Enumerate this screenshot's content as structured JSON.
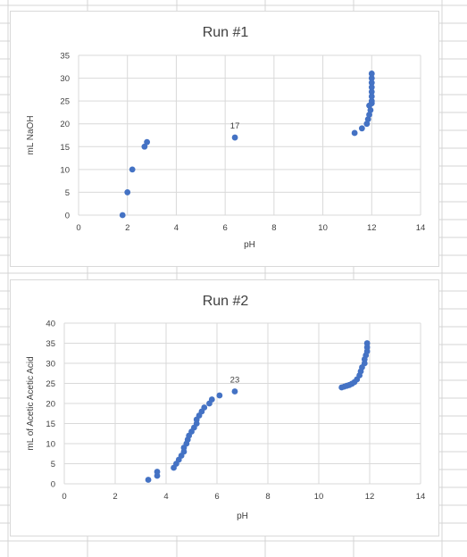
{
  "sheet": {
    "gridline_color": "#d4d4d4"
  },
  "marker_color": "#4472c4",
  "chart_data": [
    {
      "type": "scatter",
      "title": "Run #1",
      "xlabel": "pH",
      "ylabel": "mL NaOH",
      "xlim": [
        0,
        14
      ],
      "ylim": [
        0,
        35
      ],
      "xticks": [
        0,
        2,
        4,
        6,
        8,
        10,
        12,
        14
      ],
      "yticks": [
        0,
        5,
        10,
        15,
        20,
        25,
        30,
        35
      ],
      "grid": "vertical",
      "series": [
        {
          "points": [
            [
              1.8,
              0
            ],
            [
              2.0,
              5
            ],
            [
              2.2,
              10
            ],
            [
              2.7,
              15
            ],
            [
              2.8,
              16
            ],
            [
              6.4,
              17
            ],
            [
              11.3,
              18
            ],
            [
              11.6,
              19
            ],
            [
              11.8,
              20
            ],
            [
              11.85,
              21
            ],
            [
              11.9,
              22
            ],
            [
              11.95,
              23
            ],
            [
              11.9,
              24
            ],
            [
              12.0,
              24.5
            ],
            [
              12.0,
              25
            ],
            [
              12.0,
              26
            ],
            [
              12.0,
              27
            ],
            [
              12.0,
              28
            ],
            [
              12.0,
              29
            ],
            [
              12.0,
              30
            ],
            [
              12.0,
              31
            ]
          ]
        }
      ],
      "annotations": [
        {
          "x": 6.4,
          "y": 17,
          "text": "17"
        }
      ]
    },
    {
      "type": "scatter",
      "title": "Run #2",
      "xlabel": "pH",
      "ylabel": "mL of Acetic Acetic Acid",
      "xlim": [
        0,
        14
      ],
      "ylim": [
        0,
        40
      ],
      "xticks": [
        0,
        2,
        4,
        6,
        8,
        10,
        12,
        14
      ],
      "yticks": [
        0,
        5,
        10,
        15,
        20,
        25,
        30,
        35,
        40
      ],
      "grid": "both",
      "series": [
        {
          "points": [
            [
              3.3,
              1
            ],
            [
              3.65,
              2
            ],
            [
              3.65,
              3
            ],
            [
              4.3,
              4
            ],
            [
              4.4,
              5
            ],
            [
              4.5,
              6
            ],
            [
              4.6,
              7
            ],
            [
              4.7,
              8
            ],
            [
              4.7,
              9
            ],
            [
              4.8,
              10
            ],
            [
              4.85,
              11
            ],
            [
              4.9,
              12
            ],
            [
              5.0,
              13
            ],
            [
              5.1,
              14
            ],
            [
              5.2,
              15
            ],
            [
              5.2,
              16
            ],
            [
              5.3,
              17
            ],
            [
              5.4,
              18
            ],
            [
              5.5,
              19
            ],
            [
              5.7,
              20
            ],
            [
              5.8,
              21
            ],
            [
              6.1,
              22
            ],
            [
              6.7,
              23
            ],
            [
              10.9,
              24
            ],
            [
              11.0,
              24.2
            ],
            [
              11.1,
              24.4
            ],
            [
              11.2,
              24.6
            ],
            [
              11.3,
              24.9
            ],
            [
              11.4,
              25.3
            ],
            [
              11.5,
              26
            ],
            [
              11.6,
              27
            ],
            [
              11.65,
              28
            ],
            [
              11.7,
              29
            ],
            [
              11.8,
              30
            ],
            [
              11.8,
              31
            ],
            [
              11.85,
              32
            ],
            [
              11.9,
              33
            ],
            [
              11.9,
              34
            ],
            [
              11.9,
              35
            ]
          ]
        }
      ],
      "annotations": [
        {
          "x": 6.7,
          "y": 23,
          "text": "23"
        }
      ]
    }
  ]
}
